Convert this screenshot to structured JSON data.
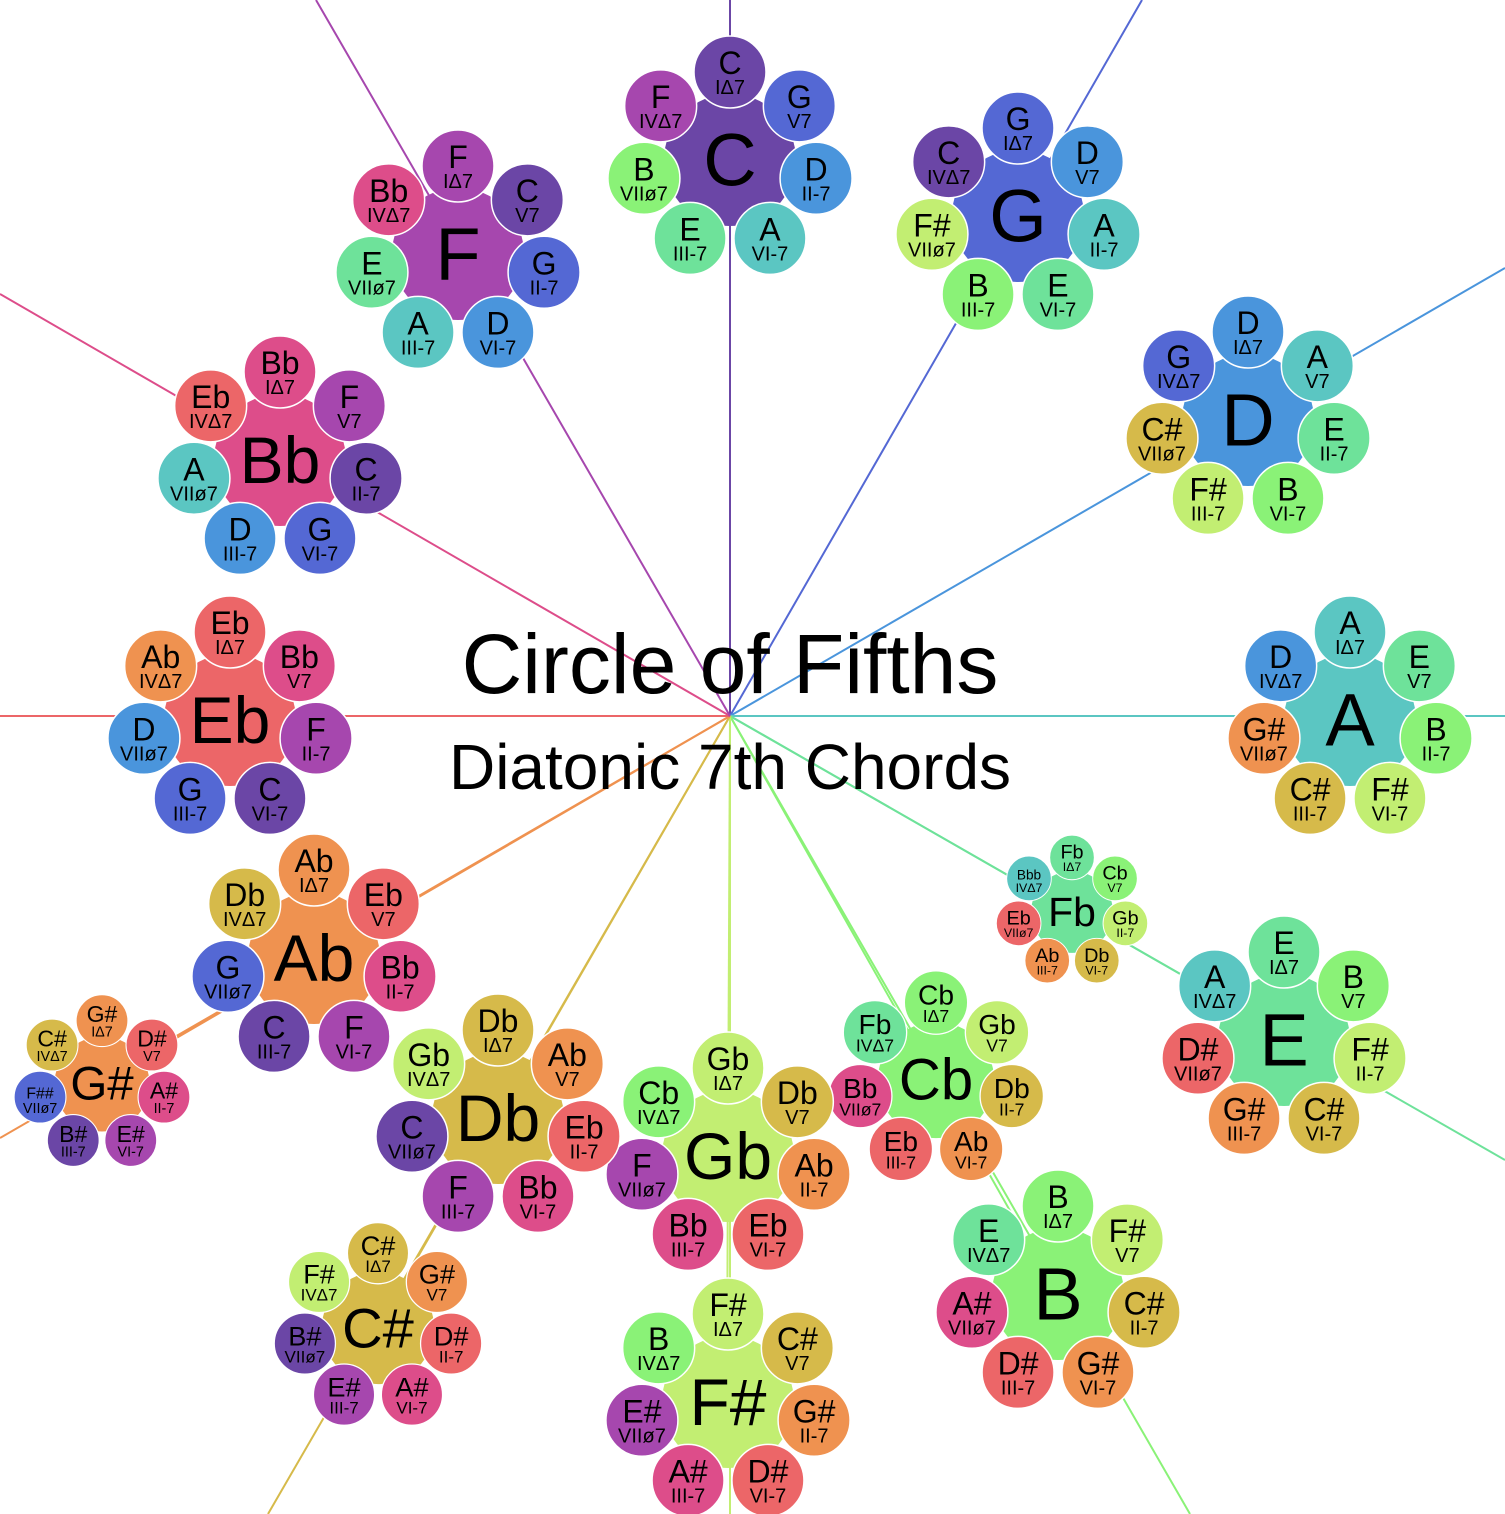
{
  "title": "Circle of Fifths",
  "subtitle": "Diatonic 7th Chords",
  "roman_numerals": [
    "IΔ7",
    "V7",
    "II-7",
    "VI-7",
    "III-7",
    "VIIø7",
    "IVΔ7"
  ],
  "note_colors": {
    "C": "#6b46a6",
    "G": "#5468d4",
    "D": "#4a95dc",
    "A": "#5bc6c2",
    "E": "#6ee29a",
    "B": "#8af277",
    "F#": "#c2ee72",
    "Db": "#d6ba4a",
    "Ab": "#ef9250",
    "Eb": "#ec6668",
    "Bb": "#dd4d8a",
    "F": "#a647ae",
    "Gb": "#c2ee72",
    "Cb": "#8af277",
    "Fb": "#6ee29a",
    "Bbb": "#5bc6c2",
    "C#": "#d6ba4a",
    "G#": "#ef9250",
    "D#": "#ec6668",
    "A#": "#dd4d8a",
    "E#": "#a647ae",
    "B#": "#6b46a6",
    "F##": "#5468d4"
  },
  "keys": [
    {
      "name": "C",
      "notes": [
        "C",
        "G",
        "D",
        "A",
        "E",
        "B",
        "F"
      ]
    },
    {
      "name": "G",
      "notes": [
        "G",
        "D",
        "A",
        "E",
        "B",
        "F#",
        "C"
      ]
    },
    {
      "name": "D",
      "notes": [
        "D",
        "A",
        "E",
        "B",
        "F#",
        "C#",
        "G"
      ]
    },
    {
      "name": "A",
      "notes": [
        "A",
        "E",
        "B",
        "F#",
        "C#",
        "G#",
        "D"
      ]
    },
    {
      "name": "E",
      "notes": [
        "E",
        "B",
        "F#",
        "C#",
        "G#",
        "D#",
        "A"
      ]
    },
    {
      "name": "Fb",
      "notes": [
        "Fb",
        "Cb",
        "Gb",
        "Db",
        "Ab",
        "Eb",
        "Bbb"
      ]
    },
    {
      "name": "B",
      "notes": [
        "B",
        "F#",
        "C#",
        "G#",
        "D#",
        "A#",
        "E"
      ]
    },
    {
      "name": "Cb",
      "notes": [
        "Cb",
        "Gb",
        "Db",
        "Ab",
        "Eb",
        "Bb",
        "Fb"
      ]
    },
    {
      "name": "F#",
      "notes": [
        "F#",
        "C#",
        "G#",
        "D#",
        "A#",
        "E#",
        "B"
      ]
    },
    {
      "name": "Gb",
      "notes": [
        "Gb",
        "Db",
        "Ab",
        "Eb",
        "Bb",
        "F",
        "Cb"
      ]
    },
    {
      "name": "C#",
      "notes": [
        "C#",
        "G#",
        "D#",
        "A#",
        "E#",
        "B#",
        "F#"
      ]
    },
    {
      "name": "Db",
      "notes": [
        "Db",
        "Ab",
        "Eb",
        "Bb",
        "F",
        "C",
        "Gb"
      ]
    },
    {
      "name": "G#",
      "notes": [
        "G#",
        "D#",
        "A#",
        "E#",
        "B#",
        "F##",
        "C#"
      ]
    },
    {
      "name": "Ab",
      "notes": [
        "Ab",
        "Eb",
        "Bb",
        "F",
        "C",
        "G",
        "Db"
      ]
    },
    {
      "name": "Eb",
      "notes": [
        "Eb",
        "Bb",
        "F",
        "C",
        "G",
        "D",
        "Ab"
      ]
    },
    {
      "name": "Bb",
      "notes": [
        "Bb",
        "F",
        "C",
        "G",
        "D",
        "A",
        "Eb"
      ]
    },
    {
      "name": "F",
      "notes": [
        "F",
        "C",
        "G",
        "D",
        "A",
        "E",
        "Bb"
      ]
    }
  ]
}
